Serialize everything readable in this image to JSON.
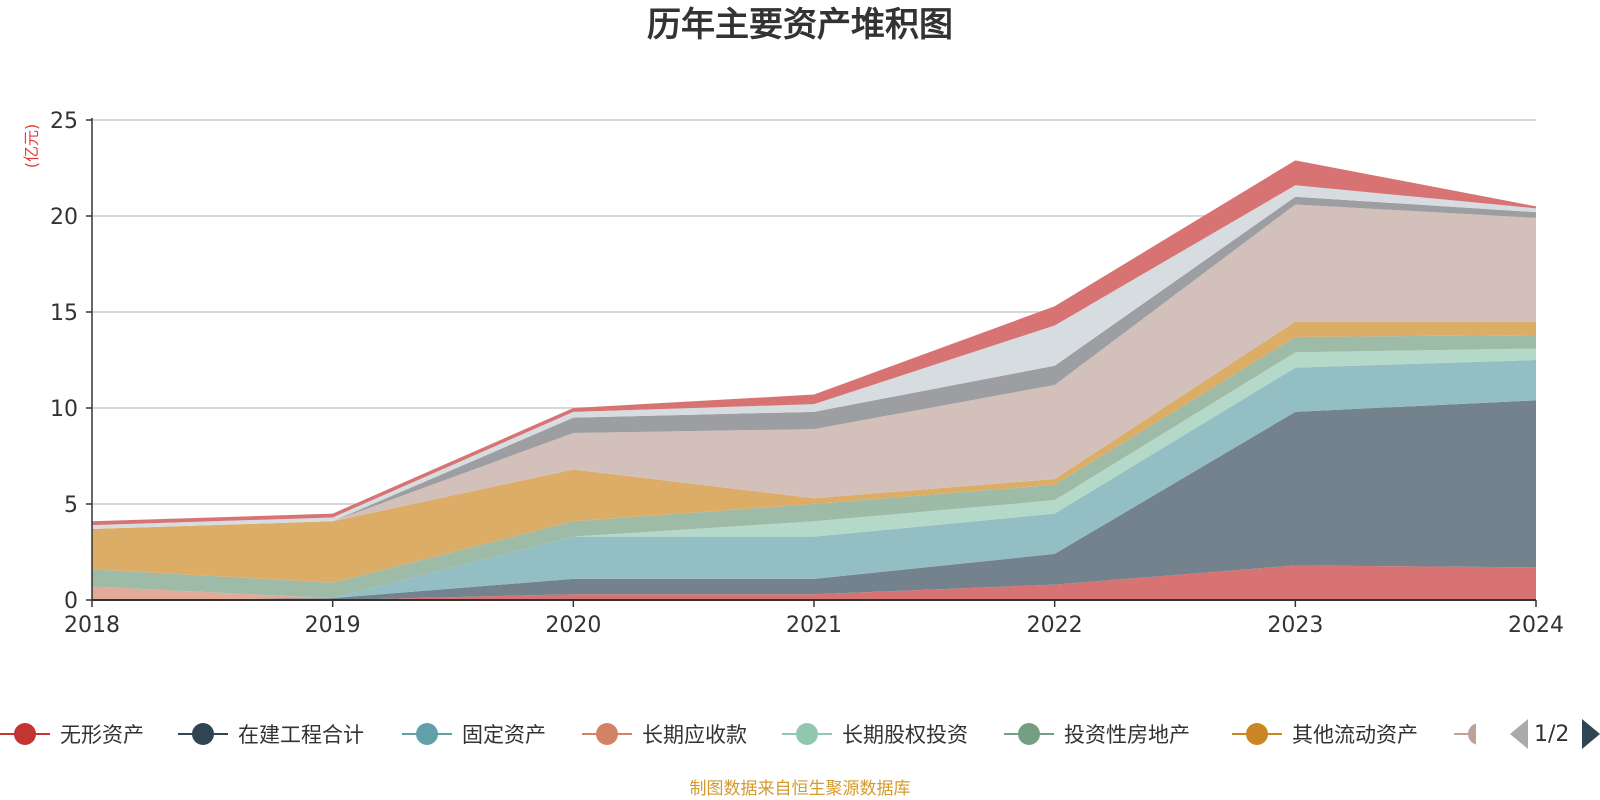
{
  "chart_data": {
    "type": "area",
    "stacked": true,
    "title": "历年主要资产堆积图",
    "unit_label": "(亿元)",
    "source_note": "制图数据来自恒生聚源数据库",
    "categories": [
      "2018",
      "2019",
      "2020",
      "2021",
      "2022",
      "2023",
      "2024"
    ],
    "ylim": [
      0,
      25
    ],
    "yticks": [
      0,
      5,
      10,
      15,
      20,
      25
    ],
    "grid": true,
    "legend_position": "bottom",
    "legend_page": "1/2",
    "series": [
      {
        "name": "无形资产",
        "color": "#c23531",
        "fill": "#d6706e",
        "values": [
          0.0,
          0.0,
          0.3,
          0.3,
          0.8,
          1.8,
          1.7
        ]
      },
      {
        "name": "在建工程合计",
        "color": "#2f4554",
        "fill": "#6f7e89",
        "values": [
          0.0,
          0.1,
          0.8,
          0.8,
          1.6,
          8.0,
          8.7
        ]
      },
      {
        "name": "固定资产",
        "color": "#61a0a8",
        "fill": "#90bcc2",
        "values": [
          0.0,
          0.0,
          2.2,
          2.2,
          2.1,
          2.3,
          2.1
        ]
      },
      {
        "name": "长期应收款",
        "color": "#d48265",
        "fill": "#e1a896",
        "values": [
          0.7,
          0.0,
          0.0,
          0.0,
          0.0,
          0.0,
          0.0
        ]
      },
      {
        "name": "长期股权投资",
        "color": "#91c7ae",
        "fill": "#b2d8c6",
        "values": [
          0.0,
          0.0,
          0.0,
          0.8,
          0.7,
          0.8,
          0.6
        ]
      },
      {
        "name": "投资性房地产",
        "color": "#749f83",
        "fill": "#9ab9a4",
        "values": [
          0.9,
          0.8,
          0.8,
          0.9,
          0.8,
          0.8,
          0.7
        ]
      },
      {
        "name": "其他流动资产",
        "color": "#ca8622",
        "fill": "#dbaa62",
        "values": [
          2.1,
          3.2,
          2.7,
          0.3,
          0.3,
          0.8,
          0.7
        ]
      },
      {
        "name": "",
        "color": "#bda29a",
        "fill": "#d2beb8",
        "values": [
          0.0,
          0.0,
          1.9,
          3.6,
          4.9,
          6.1,
          5.4
        ]
      },
      {
        "name": "",
        "color": "#6e7074",
        "fill": "#9a9b9e",
        "values": [
          0.0,
          0.0,
          0.8,
          0.9,
          1.0,
          0.4,
          0.3
        ]
      },
      {
        "name": "",
        "color": "#c4ccd3",
        "fill": "#d6dbe0",
        "values": [
          0.2,
          0.2,
          0.3,
          0.4,
          2.1,
          0.6,
          0.2
        ]
      },
      {
        "name": "",
        "color": "#c23531",
        "fill": "#d6706e",
        "values": [
          0.2,
          0.2,
          0.2,
          0.5,
          1.0,
          1.3,
          0.1
        ]
      }
    ]
  }
}
